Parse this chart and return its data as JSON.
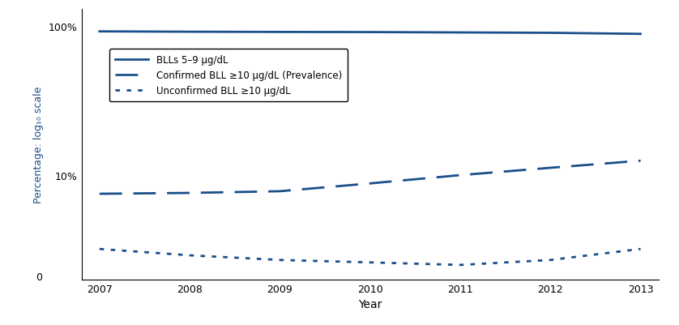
{
  "years": [
    2007,
    2008,
    2009,
    2010,
    2011,
    2012,
    2013
  ],
  "bll_5_9": [
    92.0,
    91.5,
    91.2,
    91.0,
    90.5,
    90.0,
    88.5
  ],
  "confirmed_bll_10": [
    7.5,
    7.6,
    7.8,
    8.8,
    10.0,
    11.2,
    12.5
  ],
  "unconfirmed_bll_10": [
    3.2,
    2.9,
    2.7,
    2.6,
    2.5,
    2.7,
    3.2
  ],
  "line_color": "#1a4f8a",
  "xlabel": "Year",
  "ylabel": "Percentage: log₁₀ scale",
  "legend_labels": [
    "BLLs 5–9 μg/dL",
    "Confirmed BLL ≥10 μg/dL (Prevalence)",
    "Unconfirmed BLL ≥10 μg/dL"
  ],
  "xlim": [
    2006.8,
    2013.2
  ],
  "ylim": [
    2.0,
    130
  ]
}
